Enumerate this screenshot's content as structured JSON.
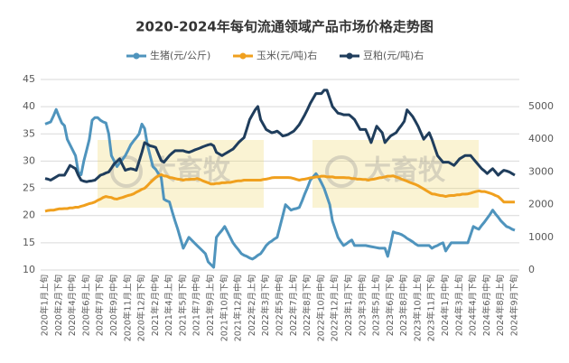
{
  "chart_data": {
    "type": "line",
    "title": "2020-2024年每旬流通领域产品市场价格走势图",
    "watermark": "大畜牧",
    "categories": [
      "2020年1月上旬",
      null,
      null,
      null,
      null,
      "2020年2月下旬",
      null,
      null,
      null,
      null,
      "2020年4月中旬",
      null,
      null,
      null,
      null,
      "2020年6月上旬",
      null,
      null,
      null,
      null,
      "2020年7月下旬",
      null,
      null,
      null,
      null,
      "2020年9月中旬",
      null,
      null,
      null,
      null,
      "2020年11月上旬",
      null,
      null,
      null,
      null,
      "2020年12月下旬",
      null,
      null,
      null,
      null,
      "2021年2月中旬",
      null,
      null,
      null,
      null,
      "2021年4月上旬",
      null,
      null,
      null,
      null,
      "2021年5月下旬",
      null,
      null,
      null,
      null,
      "2021年7月中旬",
      null,
      null,
      null,
      null,
      "2021年9月上旬",
      null,
      null,
      null,
      null,
      "2021年10月下旬",
      null,
      null,
      null,
      null,
      "2021年12月中旬",
      null,
      null,
      null,
      null,
      "2022年2月上旬",
      null,
      null,
      null,
      null,
      "2022年3月下旬",
      null,
      null,
      null,
      null,
      "2022年5月中旬",
      null,
      null,
      null,
      null,
      "2022年7月上旬",
      null,
      null,
      null,
      null,
      "2022年8月下旬",
      null,
      null,
      null,
      null,
      "2022年10月中旬",
      null,
      null,
      null,
      null,
      "2022年12月上旬",
      null,
      null,
      null,
      null,
      "2023年1月下旬",
      null,
      null,
      null,
      null,
      "2023年3月中旬",
      null,
      null,
      null,
      null,
      "2023年5月上旬",
      null,
      null,
      null,
      null,
      "2023年6月下旬",
      null,
      null,
      null,
      null,
      "2023年8月中旬",
      null,
      null,
      null,
      null,
      "2023年10月上旬",
      null,
      null,
      null,
      null,
      "2023年11月下旬",
      null,
      null,
      null,
      null,
      "2024年1月中旬",
      null,
      null,
      null,
      null,
      "2024年3月上旬",
      null,
      null,
      null,
      null,
      "2024年4月下旬",
      null,
      null,
      null,
      null,
      "2024年6月中旬",
      null,
      null,
      null,
      null,
      "2024年8月上旬",
      null,
      null,
      null,
      null,
      "2024年9月下旬"
    ],
    "series": [
      {
        "name": "生猪(元/公斤)",
        "color": "#4f94bd",
        "values": [
          36.8,
          37,
          37.2,
          38.3,
          39.5,
          38.2,
          37,
          36.5,
          34,
          33,
          32,
          31,
          28,
          27.5,
          30,
          32,
          34,
          37.5,
          38,
          38,
          37.5,
          37.2,
          37,
          35,
          31,
          30,
          29,
          29.7,
          30.3,
          31,
          32,
          33,
          33.7,
          34.3,
          35,
          36.8,
          36,
          33,
          31,
          29,
          28.5,
          27.7,
          27,
          23,
          22.7,
          22.5,
          20.7,
          19,
          17.5,
          15.7,
          14,
          15,
          16,
          15.5,
          15,
          14.5,
          14,
          13.5,
          13,
          11.5,
          11,
          10.5,
          16,
          16.7,
          17.3,
          18,
          17,
          16,
          15,
          14.3,
          13.7,
          13,
          12.7,
          12.5,
          12.2,
          12,
          12.3,
          12.7,
          13,
          13.7,
          14.5,
          15,
          15.3,
          15.7,
          16,
          18,
          20,
          22,
          21.5,
          21,
          21.2,
          21.3,
          21.5,
          22.7,
          24,
          25.2,
          26.5,
          27.1,
          27.7,
          27,
          26,
          25,
          23.5,
          22,
          19,
          17.5,
          16,
          15.2,
          14.5,
          14.8,
          15.2,
          15.5,
          14.5,
          14.5,
          14.5,
          14.5,
          14.5,
          14.4,
          14.3,
          14.2,
          14.1,
          14,
          14,
          14,
          12.5,
          14.7,
          17,
          16.8,
          16.7,
          16.5,
          16.2,
          15.8,
          15.5,
          15.2,
          14.8,
          14.5,
          14.5,
          14.5,
          14.5,
          14.5,
          14,
          14.3,
          14.5,
          14.8,
          15,
          13.5,
          14.3,
          15,
          15,
          15,
          15,
          15,
          15,
          15,
          16.5,
          18,
          17.7,
          17.5,
          18.2,
          18.8,
          19.5,
          20.2,
          21,
          20.3,
          19.7,
          19,
          18.5,
          18,
          17.8,
          17.5,
          17.3
        ]
      },
      {
        "name": "玉米(元/吨)右",
        "color": "#f0a01e",
        "axis": "y2",
        "values": [
          1800,
          1820,
          1830,
          1830,
          1850,
          1870,
          1870,
          1880,
          1880,
          1900,
          1900,
          1920,
          1920,
          1950,
          1970,
          2000,
          2030,
          2050,
          2080,
          2130,
          2170,
          2220,
          2250,
          2230,
          2220,
          2180,
          2170,
          2200,
          2220,
          2250,
          2280,
          2300,
          2330,
          2380,
          2420,
          2470,
          2500,
          2580,
          2670,
          2750,
          2830,
          2880,
          2920,
          2880,
          2870,
          2830,
          2820,
          2800,
          2780,
          2770,
          2750,
          2770,
          2770,
          2780,
          2780,
          2800,
          2770,
          2730,
          2700,
          2670,
          2630,
          2630,
          2650,
          2650,
          2670,
          2670,
          2680,
          2680,
          2700,
          2720,
          2730,
          2730,
          2750,
          2750,
          2750,
          2750,
          2750,
          2750,
          2750,
          2770,
          2780,
          2800,
          2820,
          2830,
          2830,
          2830,
          2830,
          2830,
          2830,
          2820,
          2800,
          2770,
          2750,
          2770,
          2780,
          2800,
          2820,
          2830,
          2850,
          2850,
          2870,
          2870,
          2850,
          2850,
          2850,
          2830,
          2830,
          2830,
          2830,
          2820,
          2820,
          2800,
          2800,
          2780,
          2780,
          2770,
          2770,
          2750,
          2770,
          2780,
          2800,
          2820,
          2830,
          2850,
          2870,
          2870,
          2880,
          2850,
          2820,
          2780,
          2750,
          2720,
          2680,
          2650,
          2620,
          2580,
          2530,
          2480,
          2430,
          2380,
          2330,
          2320,
          2300,
          2280,
          2270,
          2250,
          2270,
          2280,
          2280,
          2300,
          2300,
          2320,
          2320,
          2330,
          2350,
          2380,
          2400,
          2420,
          2400,
          2400,
          2380,
          2350,
          2320,
          2280,
          2250,
          2170,
          2080,
          2080,
          2080,
          2080,
          2080
        ]
      },
      {
        "name": "豆粕(元/吨)右",
        "color": "#1f3d5c",
        "axis": "y2",
        "values": [
          2800,
          2780,
          2750,
          2800,
          2850,
          2900,
          2900,
          2900,
          3050,
          3200,
          3150,
          3100,
          2900,
          2750,
          2720,
          2700,
          2720,
          2730,
          2750,
          2820,
          2900,
          2930,
          2970,
          3000,
          3120,
          3250,
          3320,
          3400,
          3220,
          3050,
          3080,
          3100,
          3080,
          3050,
          3320,
          3600,
          3900,
          3850,
          3800,
          3780,
          3750,
          3550,
          3350,
          3300,
          3400,
          3500,
          3580,
          3650,
          3650,
          3650,
          3650,
          3620,
          3600,
          3630,
          3670,
          3700,
          3730,
          3770,
          3800,
          3830,
          3850,
          3800,
          3600,
          3550,
          3500,
          3550,
          3600,
          3650,
          3700,
          3800,
          3900,
          3980,
          4050,
          4320,
          4600,
          4750,
          4900,
          5000,
          4600,
          4450,
          4300,
          4250,
          4200,
          4220,
          4250,
          4180,
          4100,
          4120,
          4150,
          4200,
          4250,
          4350,
          4450,
          4600,
          4750,
          4920,
          5100,
          5250,
          5400,
          5400,
          5400,
          5500,
          5500,
          5250,
          5000,
          4900,
          4800,
          4780,
          4750,
          4750,
          4750,
          4680,
          4600,
          4450,
          4300,
          4300,
          4300,
          4100,
          3900,
          4150,
          4400,
          4300,
          4200,
          3900,
          4000,
          4100,
          4150,
          4200,
          4320,
          4430,
          4550,
          4900,
          4800,
          4700,
          4550,
          4400,
          4200,
          4000,
          4100,
          4200,
          4000,
          3750,
          3500,
          3400,
          3300,
          3300,
          3300,
          3250,
          3200,
          3300,
          3400,
          3450,
          3500,
          3500,
          3500,
          3400,
          3300,
          3200,
          3100,
          3030,
          2950,
          3030,
          3100,
          3000,
          2900,
          2980,
          3050,
          3030,
          3000,
          2950,
          2900
        ]
      }
    ],
    "ylim": [
      10,
      45
    ],
    "yticks": [
      10,
      15,
      20,
      25,
      30,
      35,
      40,
      45
    ],
    "y2lim": [
      0,
      5830
    ],
    "y2ticks": [
      0,
      1000,
      2000,
      3000,
      4000,
      5000
    ],
    "grid": true
  }
}
